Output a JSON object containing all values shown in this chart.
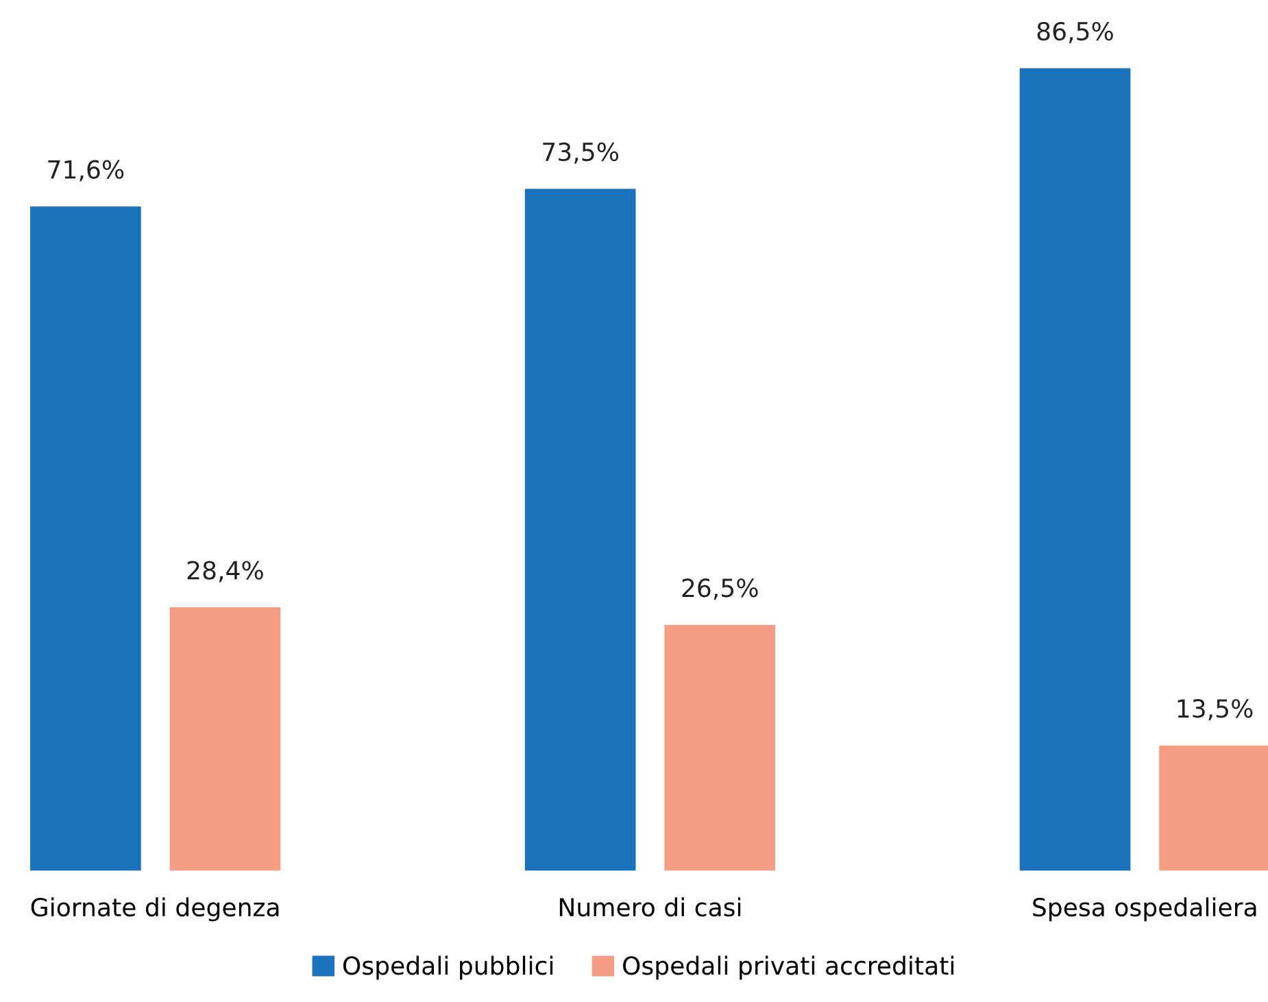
{
  "chart_data": {
    "type": "bar",
    "categories": [
      "Giornate di degenza",
      "Numero di casi",
      "Spesa ospedaliera"
    ],
    "series": [
      {
        "name": "Ospedali pubblici",
        "color": "#1a73bb",
        "values": [
          71.6,
          73.5,
          86.5
        ],
        "value_labels": [
          "71,6%",
          "73,5%",
          "86,5%"
        ]
      },
      {
        "name": "Ospedali privati accreditati",
        "color": "#f59d85",
        "values": [
          28.4,
          26.5,
          13.5
        ],
        "value_labels": [
          "28,4%",
          "26,5%",
          "13,5%"
        ]
      }
    ],
    "legend": "bottom",
    "grid": false,
    "tick_labels": "x"
  }
}
